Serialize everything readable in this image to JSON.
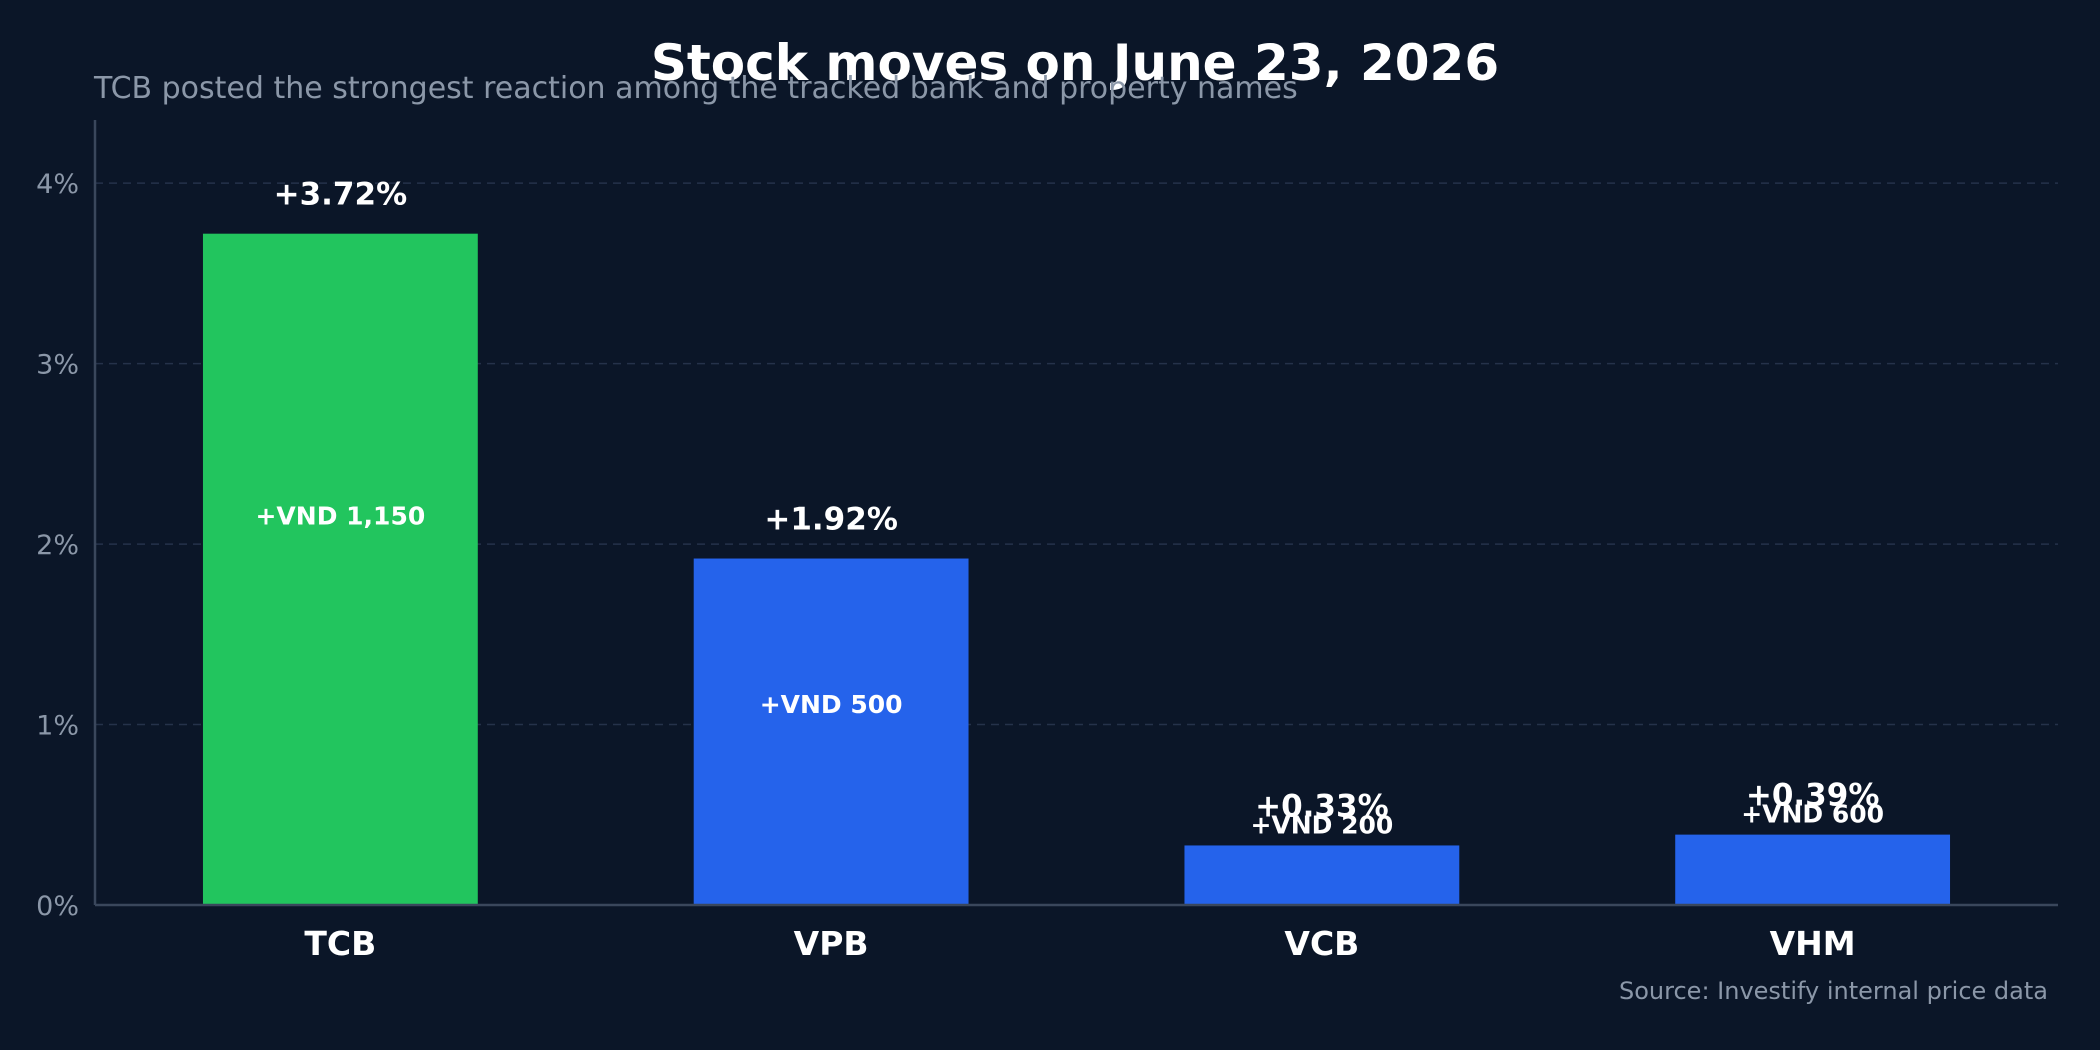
{
  "chart_data": {
    "type": "bar",
    "title": "Stock moves on June 23, 2026",
    "subtitle": "TCB posted the strongest reaction among the tracked bank and property names",
    "categories": [
      "TCB",
      "VPB",
      "VCB",
      "VHM"
    ],
    "values": [
      3.72,
      1.92,
      0.33,
      0.39
    ],
    "value_labels": [
      "+3.72%",
      "+1.92%",
      "+0.33%",
      "+0.39%"
    ],
    "price_change_labels": [
      "+VND 1,150",
      "+VND 500",
      "+VND 200",
      "+VND 600"
    ],
    "bar_colors": [
      "#22c55e",
      "#2563eb",
      "#2563eb",
      "#2563eb"
    ],
    "xlabel": "",
    "ylabel": "",
    "ylim": [
      0,
      4.35
    ],
    "yticks": [
      0,
      1,
      2,
      3,
      4
    ],
    "ytick_labels": [
      "0%",
      "1%",
      "2%",
      "3%",
      "4%"
    ],
    "grid": true,
    "legend": "none",
    "source": "Source: Investify internal price data"
  }
}
